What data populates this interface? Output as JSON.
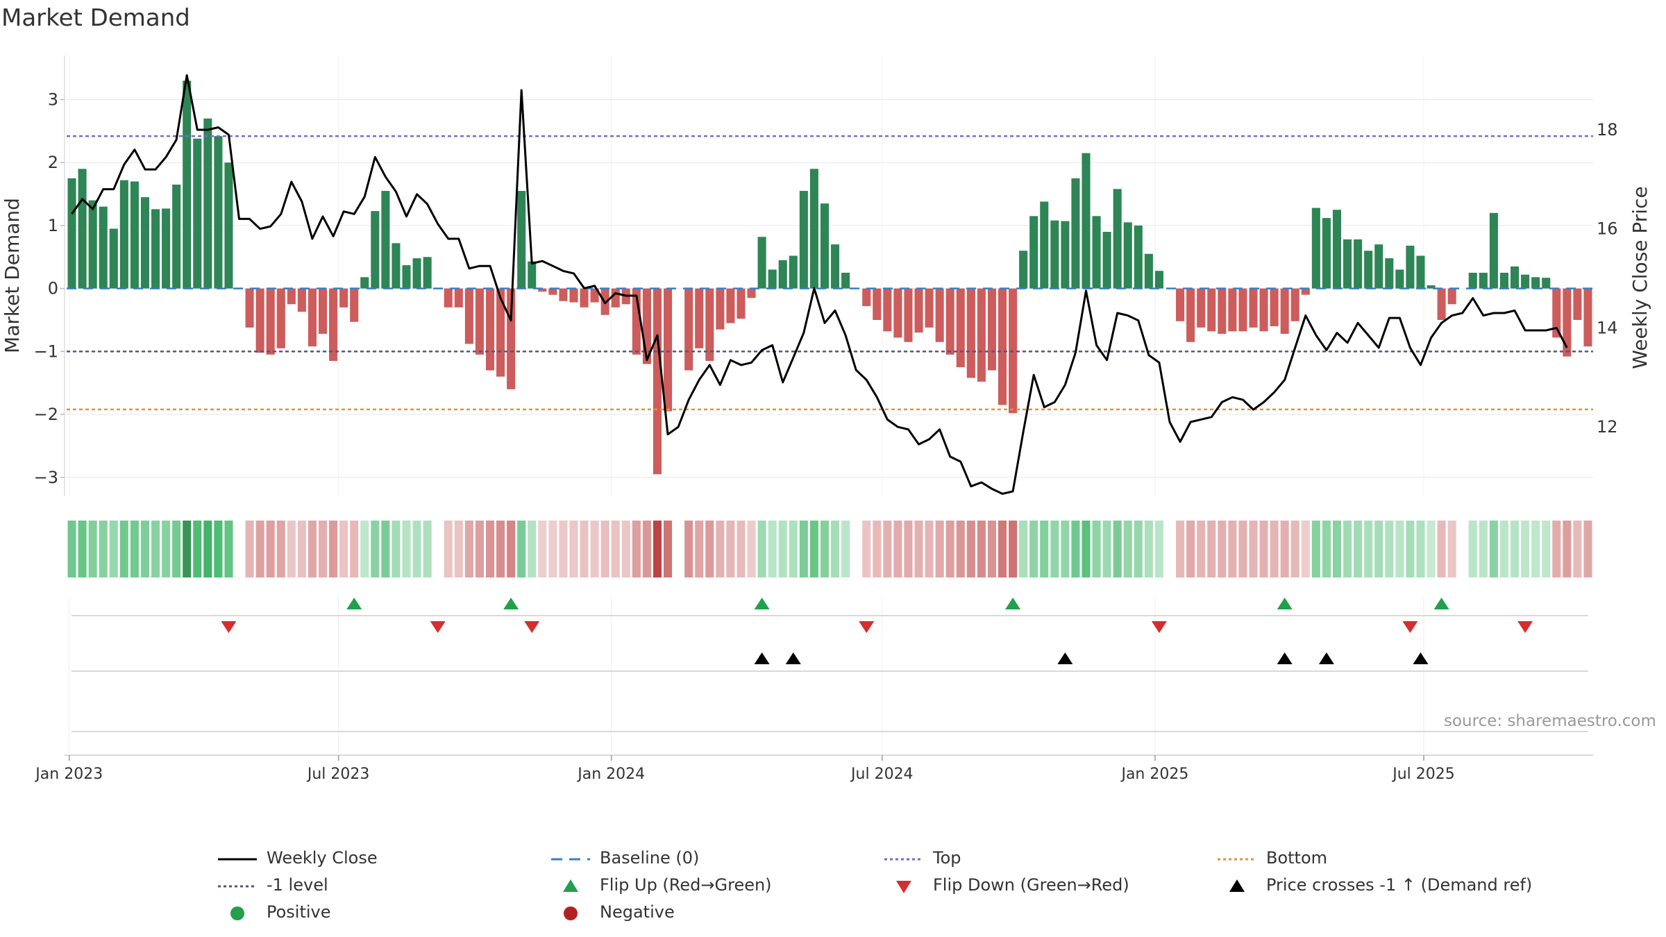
{
  "title": "Market Demand",
  "source": "source: sharemaestro.com",
  "chart_data": {
    "type": "bar",
    "ylabel_left": "Market Demand",
    "ylabel_right": "Weekly Close Price",
    "ylim_left": [
      -3.3,
      3.7
    ],
    "ylim_right": [
      10.6,
      19.5
    ],
    "left_ticks": [
      "3",
      "2",
      "1",
      "0",
      "−1",
      "−2",
      "−3"
    ],
    "left_tick_values": [
      3,
      2,
      1,
      0,
      -1,
      -2,
      -3
    ],
    "right_ticks": [
      "18",
      "16",
      "14",
      "12"
    ],
    "right_tick_values": [
      18,
      16,
      14,
      12
    ],
    "x_tick_labels": [
      "Jan 2023",
      "Jul 2023",
      "Jan 2024",
      "Jul 2024",
      "Jan 2025",
      "Jul 2025"
    ],
    "x_tick_weeks": [
      0.25,
      26.0,
      52.1,
      78.0,
      104.1,
      129.8
    ],
    "top_level": 2.42,
    "bottom_level": -1.92,
    "minus_one_level": -1,
    "demand": [
      1.75,
      1.9,
      1.4,
      1.3,
      0.95,
      1.72,
      1.7,
      1.45,
      1.26,
      1.27,
      1.65,
      3.3,
      2.38,
      2.7,
      2.42,
      2.0,
      0,
      -0.62,
      -1.02,
      -1.05,
      -0.95,
      -0.25,
      -0.37,
      -0.92,
      -0.72,
      -1.15,
      -0.3,
      -0.53,
      0.18,
      1.23,
      1.55,
      0.72,
      0.37,
      0.48,
      0.5,
      0,
      -0.3,
      -0.3,
      -0.88,
      -1.05,
      -1.3,
      -1.4,
      -1.6,
      1.55,
      0.43,
      -0.05,
      -0.1,
      -0.2,
      -0.22,
      -0.3,
      -0.22,
      -0.42,
      -0.3,
      -0.25,
      -1.05,
      -1.2,
      -2.95,
      -1.95,
      0,
      -1.3,
      -0.95,
      -1.15,
      -0.65,
      -0.55,
      -0.48,
      -0.15,
      0.82,
      0.3,
      0.45,
      0.52,
      1.55,
      1.9,
      1.35,
      0.7,
      0.25,
      0,
      -0.28,
      -0.5,
      -0.68,
      -0.78,
      -0.85,
      -0.7,
      -0.62,
      -0.85,
      -1.05,
      -1.25,
      -1.42,
      -1.48,
      -1.3,
      -1.85,
      -1.98,
      0.6,
      1.15,
      1.38,
      1.08,
      1.07,
      1.75,
      2.15,
      1.15,
      0.9,
      1.58,
      1.05,
      1.0,
      0.55,
      0.28,
      0,
      -0.52,
      -0.85,
      -0.62,
      -0.68,
      -0.72,
      -0.68,
      -0.68,
      -0.62,
      -0.68,
      -0.6,
      -0.72,
      -0.52,
      -0.1,
      1.28,
      1.12,
      1.25,
      0.78,
      0.78,
      0.6,
      0.7,
      0.48,
      0.3,
      0.68,
      0.52,
      0.05,
      -0.5,
      -0.25,
      0,
      0.25,
      0.25,
      1.2,
      0.25,
      0.35,
      0.22,
      0.18,
      0.17,
      -0.78,
      -1.08,
      -0.5,
      -0.92
    ],
    "close": [
      16.3,
      16.6,
      16.4,
      16.8,
      16.8,
      17.3,
      17.6,
      17.2,
      17.2,
      17.45,
      17.8,
      19.1,
      18.0,
      18.0,
      18.05,
      17.9,
      16.2,
      16.2,
      16.0,
      16.05,
      16.3,
      16.95,
      16.55,
      15.8,
      16.25,
      15.85,
      16.35,
      16.3,
      16.65,
      17.45,
      17.05,
      16.75,
      16.25,
      16.7,
      16.5,
      16.1,
      15.8,
      15.8,
      15.2,
      15.25,
      15.25,
      14.6,
      14.15,
      18.8,
      15.3,
      15.35,
      15.25,
      15.15,
      15.1,
      14.8,
      14.85,
      14.5,
      14.7,
      14.65,
      14.65,
      13.35,
      13.85,
      11.85,
      12.0,
      12.55,
      12.95,
      13.25,
      12.85,
      13.35,
      13.25,
      13.3,
      13.55,
      13.65,
      12.9,
      13.4,
      13.9,
      14.8,
      14.1,
      14.35,
      13.85,
      13.15,
      12.95,
      12.6,
      12.15,
      12.0,
      11.95,
      11.65,
      11.75,
      11.95,
      11.4,
      11.3,
      10.8,
      10.88,
      10.75,
      10.65,
      10.7,
      11.9,
      13.05,
      12.4,
      12.5,
      12.85,
      13.5,
      14.75,
      13.65,
      13.35,
      14.3,
      14.25,
      14.15,
      13.45,
      13.3,
      12.1,
      11.7,
      12.1,
      12.15,
      12.2,
      12.5,
      12.6,
      12.55,
      12.35,
      12.5,
      12.7,
      12.95,
      13.6,
      14.25,
      13.85,
      13.55,
      13.9,
      13.7,
      14.1,
      13.85,
      13.6,
      14.2,
      14.2,
      13.6,
      13.25,
      13.8,
      14.1,
      14.25,
      14.3,
      14.6,
      14.25,
      14.3,
      14.3,
      14.35,
      13.95,
      13.95,
      13.95,
      14.0,
      13.6
    ],
    "flip_up_weeks": [
      27.5,
      42.5,
      66.5,
      90.5,
      116.5,
      131.5
    ],
    "flip_down_weeks": [
      15.5,
      35.5,
      44.5,
      76.5,
      104.5,
      128.5,
      139.5
    ],
    "cross_weeks": [
      66.5,
      69.5,
      95.5,
      116.5,
      120.5,
      129.5
    ],
    "legend": [
      {
        "label": "Weekly Close",
        "symbol": "solid-black-line"
      },
      {
        "label": "Baseline (0)",
        "symbol": "dashed-blue-line"
      },
      {
        "label": "Top",
        "symbol": "dotted-purple-line"
      },
      {
        "label": "Bottom",
        "symbol": "dotted-orange-line"
      },
      {
        "label": "-1 level",
        "symbol": "dotted-slate-line"
      },
      {
        "label": "Flip Up (Red→Green)",
        "symbol": "green-up-triangle"
      },
      {
        "label": "Flip Down (Green→Red)",
        "symbol": "red-down-triangle"
      },
      {
        "label": "Price crosses -1 ↑ (Demand ref)",
        "symbol": "black-up-triangle"
      },
      {
        "label": "Positive",
        "symbol": "green-circle"
      },
      {
        "label": "Negative",
        "symbol": "red-circle"
      }
    ]
  },
  "colors": {
    "positive": "#2e8555",
    "negative": "#cd5c5c",
    "close": "#000000",
    "baseline": "#3a7ec2",
    "top": "#7b68d0",
    "bottom": "#e69138",
    "minus_one": "#555577",
    "flip_up": "#22a04b",
    "flip_down": "#d62d2d",
    "cross": "#000000",
    "grid": "#e8e8e8"
  }
}
